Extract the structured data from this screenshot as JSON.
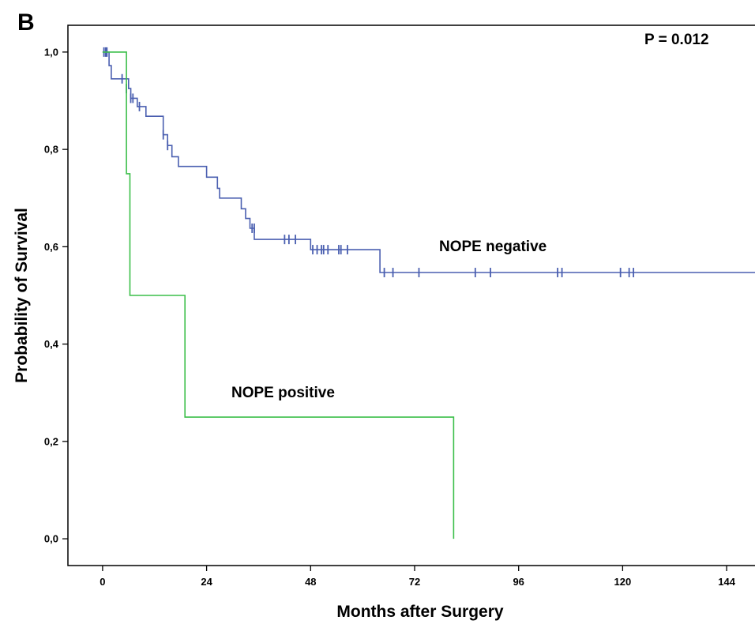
{
  "panel_label": "B",
  "chart_data": {
    "type": "line",
    "title": "",
    "xlabel": "Months after Surgery",
    "ylabel": "Probability of Survival",
    "xlim": [
      -8,
      152
    ],
    "ylim": [
      -0.055,
      1.055
    ],
    "x_ticks": [
      0,
      24,
      48,
      72,
      96,
      120,
      144
    ],
    "x_tick_labels": [
      "0",
      "24",
      "48",
      "72",
      "96",
      "120",
      "144"
    ],
    "y_ticks": [
      0.0,
      0.2,
      0.4,
      0.6,
      0.8,
      1.0
    ],
    "y_tick_labels": [
      "0,0",
      "0,2",
      "0,4",
      "0,6",
      "0,8",
      "1,0"
    ],
    "grid": false,
    "legend": "none",
    "annotation": "P = 0.012",
    "series": [
      {
        "name": "NOPE negative",
        "color": "#4a5fb0",
        "steps": [
          [
            0,
            1.0
          ],
          [
            1.5,
            0.972
          ],
          [
            2,
            0.945
          ],
          [
            6,
            0.925
          ],
          [
            6.5,
            0.905
          ],
          [
            8,
            0.888
          ],
          [
            10,
            0.868
          ],
          [
            14,
            0.83
          ],
          [
            15,
            0.808
          ],
          [
            16,
            0.785
          ],
          [
            17.5,
            0.765
          ],
          [
            24,
            0.743
          ],
          [
            26.5,
            0.72
          ],
          [
            27,
            0.7
          ],
          [
            32,
            0.678
          ],
          [
            33,
            0.658
          ],
          [
            34,
            0.638
          ],
          [
            35,
            0.615
          ],
          [
            48,
            0.594
          ],
          [
            64,
            0.547
          ],
          [
            152,
            0.547
          ]
        ],
        "censor_marks": [
          [
            0.3,
            1.0
          ],
          [
            0.7,
            1.0
          ],
          [
            1.0,
            1.0
          ],
          [
            4.5,
            0.945
          ],
          [
            5.5,
            0.925
          ],
          [
            6.5,
            0.905
          ],
          [
            7,
            0.905
          ],
          [
            8.5,
            0.888
          ],
          [
            14,
            0.83
          ],
          [
            15,
            0.808
          ],
          [
            34.5,
            0.638
          ],
          [
            35,
            0.638
          ],
          [
            42,
            0.615
          ],
          [
            43,
            0.615
          ],
          [
            44.5,
            0.615
          ],
          [
            48.5,
            0.594
          ],
          [
            49.5,
            0.594
          ],
          [
            50.5,
            0.594
          ],
          [
            51,
            0.594
          ],
          [
            52,
            0.594
          ],
          [
            54.5,
            0.594
          ],
          [
            55,
            0.594
          ],
          [
            56.5,
            0.594
          ],
          [
            65,
            0.547
          ],
          [
            67,
            0.547
          ],
          [
            73,
            0.547
          ],
          [
            86,
            0.547
          ],
          [
            89.5,
            0.547
          ],
          [
            105,
            0.547
          ],
          [
            106,
            0.547
          ],
          [
            119.5,
            0.547
          ],
          [
            121.5,
            0.547
          ],
          [
            122.5,
            0.547
          ]
        ]
      },
      {
        "name": "NOPE positive",
        "color": "#3cbf4a",
        "steps": [
          [
            0,
            1.0
          ],
          [
            5.5,
            0.75
          ],
          [
            6.3,
            0.5
          ],
          [
            19,
            0.25
          ],
          [
            81,
            0.0
          ]
        ],
        "censor_marks": []
      }
    ]
  }
}
